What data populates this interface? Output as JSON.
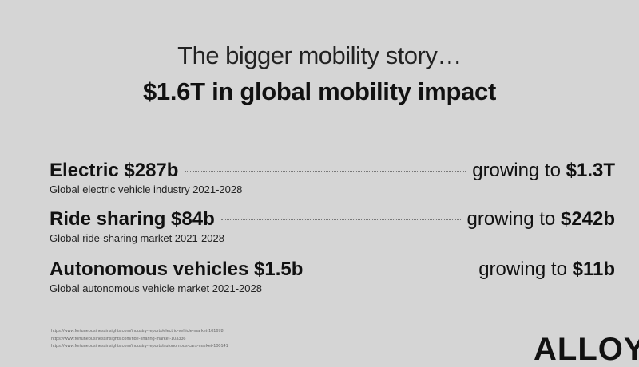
{
  "title": "The bigger mobility story…",
  "subtitle": "$1.6T in global mobility impact",
  "rows": [
    {
      "label": "Electric $287b",
      "growing_prefix": "growing to",
      "growing_value": "$1.3T",
      "description": "Global electric vehicle industry 2021-2028"
    },
    {
      "label": "Ride sharing $84b",
      "growing_prefix": "growing to",
      "growing_value": "$242b",
      "description": "Global ride-sharing market 2021-2028"
    },
    {
      "label": "Autonomous vehicles $1.5b",
      "growing_prefix": "growing to",
      "growing_value": "$11b",
      "description": "Global autonomous vehicle market 2021-2028"
    }
  ],
  "sources": [
    "https://www.fortunebusinessinsights.com/industry-reports/electric-vehicle-market-101678",
    "https://www.fortunebusinessinsights.com/ride-sharing-market-103336",
    "https://www.fortunebusinessinsights.com/industry-reports/autonomous-cars-market-100141"
  ],
  "logo": "ALLOY"
}
